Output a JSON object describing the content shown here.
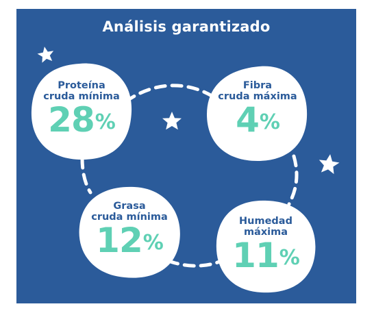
{
  "title": "Análisis garantizado",
  "items": [
    {
      "label_line1": "Proteína",
      "label_line2": "cruda mínima",
      "value": "28",
      "unit": "%"
    },
    {
      "label_line1": "Fibra",
      "label_line2": "cruda máxima",
      "value": "4",
      "unit": "%"
    },
    {
      "label_line1": "Grasa",
      "label_line2": "cruda mínima",
      "value": "12",
      "unit": "%"
    },
    {
      "label_line1": "Humedad",
      "label_line2": "máxima",
      "value": "11",
      "unit": "%"
    }
  ],
  "colors": {
    "background": "#2b5b9a",
    "blob": "#ffffff",
    "value": "#5fd0b4",
    "text": "#2b5b9a"
  }
}
